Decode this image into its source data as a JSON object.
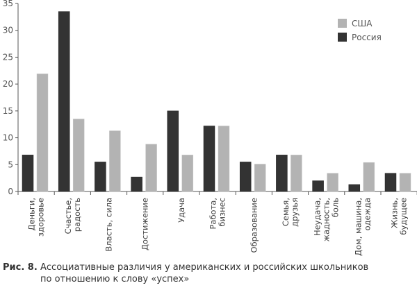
{
  "chart_data": {
    "type": "bar",
    "categories": [
      [
        "Деньги,",
        "здоровье"
      ],
      [
        "Счастье,",
        "радость"
      ],
      [
        "Власть, сила"
      ],
      [
        "Достижение"
      ],
      [
        "Удача"
      ],
      [
        "Работа,",
        "бизнес"
      ],
      [
        "Образование"
      ],
      [
        "Семья,",
        "друзья"
      ],
      [
        "Неудача,",
        "жадность,",
        "боль"
      ],
      [
        "Дом, машина,",
        "одежда"
      ],
      [
        "Жизнь,",
        "будущее"
      ]
    ],
    "series": [
      {
        "name": "Россия",
        "color": "#333333",
        "values": [
          6.8,
          33.5,
          5.5,
          2.7,
          15.0,
          12.2,
          5.5,
          6.8,
          2.0,
          1.3,
          3.4
        ]
      },
      {
        "name": "США",
        "color": "#b3b3b3",
        "values": [
          21.9,
          13.5,
          11.3,
          8.8,
          6.8,
          12.2,
          5.1,
          6.8,
          3.4,
          5.4,
          3.4
        ]
      }
    ],
    "legend_order": [
      "США",
      "Россия"
    ],
    "ylim": [
      0,
      35
    ],
    "yticks": [
      0,
      5,
      10,
      15,
      20,
      25,
      30,
      35
    ],
    "grid": false,
    "legend_position": "top-right"
  },
  "caption": {
    "number": "Рис. 8.",
    "line1": "Ассоциативные различия у американских и российских школьников",
    "line2": "по отношению к слову «успех»"
  }
}
